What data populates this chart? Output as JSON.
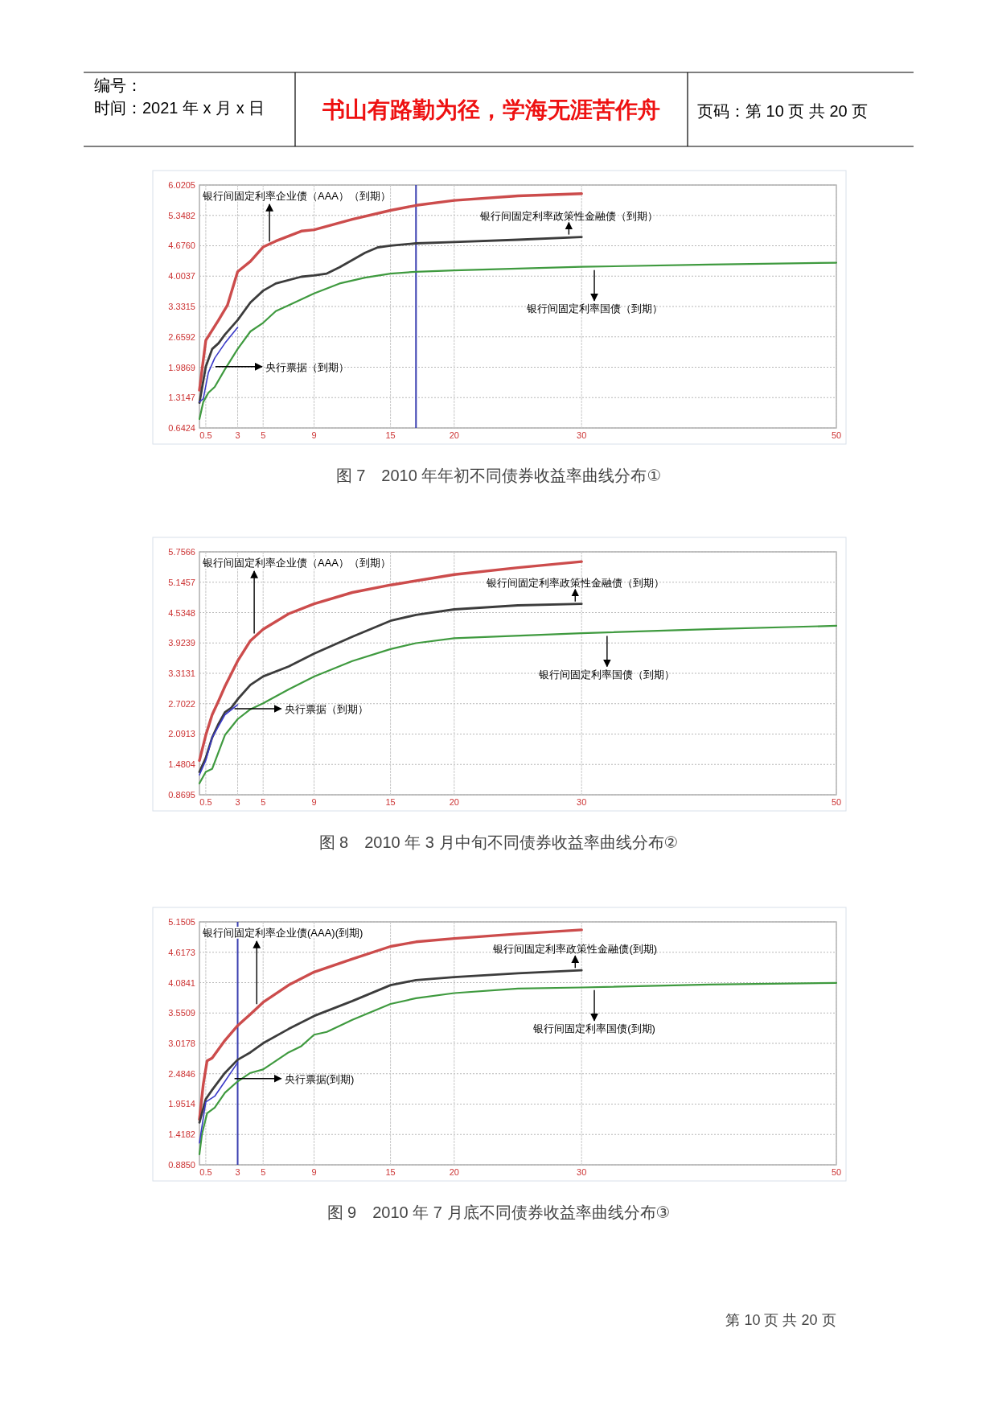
{
  "chart_data": [
    {
      "type": "line",
      "title": "图 7　2010 年年初不同债券收益率曲线分布①",
      "annotations": [
        "编号：",
        "时间：2021 年 x 月 x 日",
        "书山有路勤为径，学海无涯苦作舟",
        "页码：第 10 页  共 20 页",
        {
          "text": "银行间固定利率企业债（AAA）（到期）",
          "x": 5.5,
          "y": 4.7
        },
        {
          "text": "银行间固定利率政策性金融债（到期）",
          "x": 29,
          "y": 4.87
        },
        {
          "text": "银行间固定利率国债（到期）",
          "x": 31,
          "y": 4.21
        },
        {
          "text": "央行票据（到期）",
          "x": 1,
          "y": 2.0
        }
      ],
      "xlim": [
        0,
        50
      ],
      "xticks": [
        0.5,
        3,
        5,
        9,
        15,
        20,
        30,
        50
      ],
      "ylim": [
        0.6424,
        6.0205
      ],
      "yticks": [
        0.6424,
        1.3147,
        1.9869,
        2.6592,
        3.3315,
        4.0037,
        {
          "value": 4.676,
          "label": "4.6760"
        },
        5.3482,
        6.0205
      ],
      "grid": true,
      "ref_lines": [
        {
          "axis": "x",
          "value": 17,
          "color": "#3a3fb0"
        }
      ],
      "series": [
        {
          "color": "#cc4c4c",
          "x": [
            0,
            0.5,
            1.5,
            2.2,
            3,
            4,
            5,
            6,
            8,
            9,
            12,
            15,
            17,
            20,
            25,
            30
          ],
          "values": [
            1.48,
            2.58,
            3.03,
            3.36,
            4.1,
            4.33,
            4.65,
            4.78,
            5.0,
            5.03,
            5.26,
            5.46,
            5.57,
            5.68,
            5.78,
            5.83
          ]
        },
        {
          "color": "#3c3c3c",
          "x": [
            0,
            0.5,
            1,
            1.5,
            2,
            3,
            4,
            5,
            6,
            8,
            9,
            10,
            11,
            12,
            13,
            14,
            15,
            17,
            20,
            25,
            30
          ],
          "values": [
            1.2,
            2.0,
            2.39,
            2.52,
            2.71,
            3.03,
            3.42,
            3.68,
            3.84,
            3.99,
            4.02,
            4.06,
            4.2,
            4.36,
            4.52,
            4.64,
            4.68,
            4.73,
            4.76,
            4.81,
            4.87
          ]
        },
        {
          "color": "#3f9a3f",
          "x": [
            0,
            0.3,
            0.7,
            1.2,
            2,
            3,
            4,
            5,
            6,
            7,
            9,
            11,
            13,
            15,
            17,
            20,
            30,
            40,
            50
          ],
          "values": [
            0.84,
            1.22,
            1.42,
            1.55,
            1.94,
            2.39,
            2.78,
            2.97,
            3.23,
            3.36,
            3.62,
            3.84,
            3.97,
            4.06,
            4.1,
            4.13,
            4.21,
            4.26,
            4.3
          ]
        },
        {
          "color": "#3a3ac8",
          "x": [
            0,
            0.3,
            0.7,
            1.2,
            2,
            3
          ],
          "values": [
            1.22,
            1.29,
            1.87,
            2.19,
            2.52,
            2.87
          ]
        }
      ]
    },
    {
      "type": "line",
      "title": "图 8　2010 年 3 月中旬不同债券收益率曲线分布②",
      "annotations": [
        {
          "text": "银行间固定利率企业债（AAA）（到期）",
          "x": 4.3,
          "y": 4.05
        },
        {
          "text": "银行间固定利率政策性金融债（到期）",
          "x": 29.5,
          "y": 4.71
        },
        {
          "text": "银行间固定利率国债（到期）",
          "x": 32,
          "y": 4.13
        },
        {
          "text": "央行票据（到期）",
          "x": 2.5,
          "y": 2.6
        }
      ],
      "xlim": [
        0,
        50
      ],
      "xticks": [
        0.5,
        3,
        5,
        9,
        15,
        20,
        30,
        50
      ],
      "ylim": [
        0.8695,
        5.7566
      ],
      "yticks": [
        0.8695,
        1.4804,
        2.0913,
        2.7022,
        3.3131,
        3.9239,
        4.5348,
        5.1457,
        5.7566
      ],
      "grid": true,
      "series": [
        {
          "color": "#cc4c4c",
          "x": [
            0,
            0.5,
            1,
            1.5,
            2,
            3,
            4,
            5,
            7,
            9,
            12,
            15,
            20,
            25,
            30
          ],
          "values": [
            1.56,
            2.07,
            2.48,
            2.76,
            3.05,
            3.56,
            3.97,
            4.2,
            4.51,
            4.71,
            4.94,
            5.09,
            5.3,
            5.44,
            5.56
          ]
        },
        {
          "color": "#3c3c3c",
          "x": [
            0,
            0.5,
            1,
            1.5,
            2,
            2.5,
            3,
            4,
            5,
            7,
            9,
            12,
            15,
            17,
            20,
            25,
            30
          ],
          "values": [
            1.33,
            1.61,
            2.02,
            2.3,
            2.53,
            2.62,
            2.79,
            3.08,
            3.25,
            3.45,
            3.71,
            4.05,
            4.37,
            4.49,
            4.6,
            4.68,
            4.71
          ]
        },
        {
          "color": "#3f9a3f",
          "x": [
            0,
            0.5,
            1,
            2,
            3,
            4,
            5,
            7,
            9,
            12,
            15,
            17,
            20,
            30,
            40,
            50
          ],
          "values": [
            1.1,
            1.33,
            1.39,
            2.07,
            2.39,
            2.59,
            2.71,
            2.99,
            3.25,
            3.56,
            3.8,
            3.92,
            4.02,
            4.12,
            4.2,
            4.27
          ]
        },
        {
          "color": "#3a3ac8",
          "x": [
            0,
            0.5,
            1,
            2,
            3
          ],
          "values": [
            1.27,
            1.56,
            2.02,
            2.48,
            2.68
          ]
        }
      ]
    },
    {
      "type": "line",
      "title": "图 9　2010 年 7 月底不同债券收益率曲线分布③",
      "annotations": [
        "第 10 页 共 20 页",
        {
          "text": "银行间固定利率企业债(AAA)(到期)",
          "x": 4.5,
          "y": 3.65
        },
        {
          "text": "银行间固定利率政策性金融债(到期)",
          "x": 29.5,
          "y": 4.3
        },
        {
          "text": "银行间固定利率国债(到期)",
          "x": 31,
          "y": 4.01
        },
        {
          "text": "央行票据(到期)",
          "x": 2.5,
          "y": 2.4
        }
      ],
      "xlim": [
        0,
        50
      ],
      "xticks": [
        0.5,
        3,
        5,
        9,
        15,
        20,
        30,
        50
      ],
      "ylim": [
        0.885,
        5.1505
      ],
      "yticks": [
        {
          "value": 0.885,
          "label": "0.8850"
        },
        1.4182,
        1.9514,
        2.4846,
        3.0178,
        3.5509,
        4.0841,
        4.6173,
        5.1505
      ],
      "grid": true,
      "ref_lines": [
        {
          "axis": "x",
          "value": 3,
          "color": "#3a3fb0"
        }
      ],
      "series": [
        {
          "color": "#cc4c4c",
          "x": [
            0,
            0.3,
            0.6,
            1,
            2,
            3,
            4,
            5,
            7,
            9,
            12,
            15,
            17,
            20,
            25,
            30
          ],
          "values": [
            1.68,
            2.3,
            2.71,
            2.76,
            3.07,
            3.33,
            3.53,
            3.74,
            4.04,
            4.27,
            4.5,
            4.72,
            4.8,
            4.86,
            4.94,
            5.01
          ]
        },
        {
          "color": "#3c3c3c",
          "x": [
            0,
            0.5,
            1,
            2,
            3,
            4,
            5,
            7,
            9,
            12,
            15,
            17,
            20,
            25,
            30
          ],
          "values": [
            1.63,
            2.04,
            2.2,
            2.5,
            2.73,
            2.86,
            3.02,
            3.27,
            3.5,
            3.76,
            4.04,
            4.13,
            4.18,
            4.25,
            4.3
          ]
        },
        {
          "color": "#3f9a3f",
          "x": [
            0,
            0.2,
            0.6,
            1.2,
            2,
            3,
            4,
            5,
            7,
            8,
            9,
            10,
            12,
            15,
            17,
            20,
            25,
            30,
            40,
            50
          ],
          "values": [
            1.07,
            1.43,
            1.79,
            1.89,
            2.15,
            2.35,
            2.5,
            2.56,
            2.86,
            2.97,
            3.17,
            3.22,
            3.43,
            3.71,
            3.81,
            3.9,
            3.98,
            4.0,
            4.05,
            4.08
          ]
        },
        {
          "color": "#3a3ac8",
          "x": [
            0,
            0.5,
            1.2,
            2,
            3
          ],
          "values": [
            1.27,
            1.99,
            2.09,
            2.35,
            2.68
          ]
        }
      ]
    }
  ]
}
